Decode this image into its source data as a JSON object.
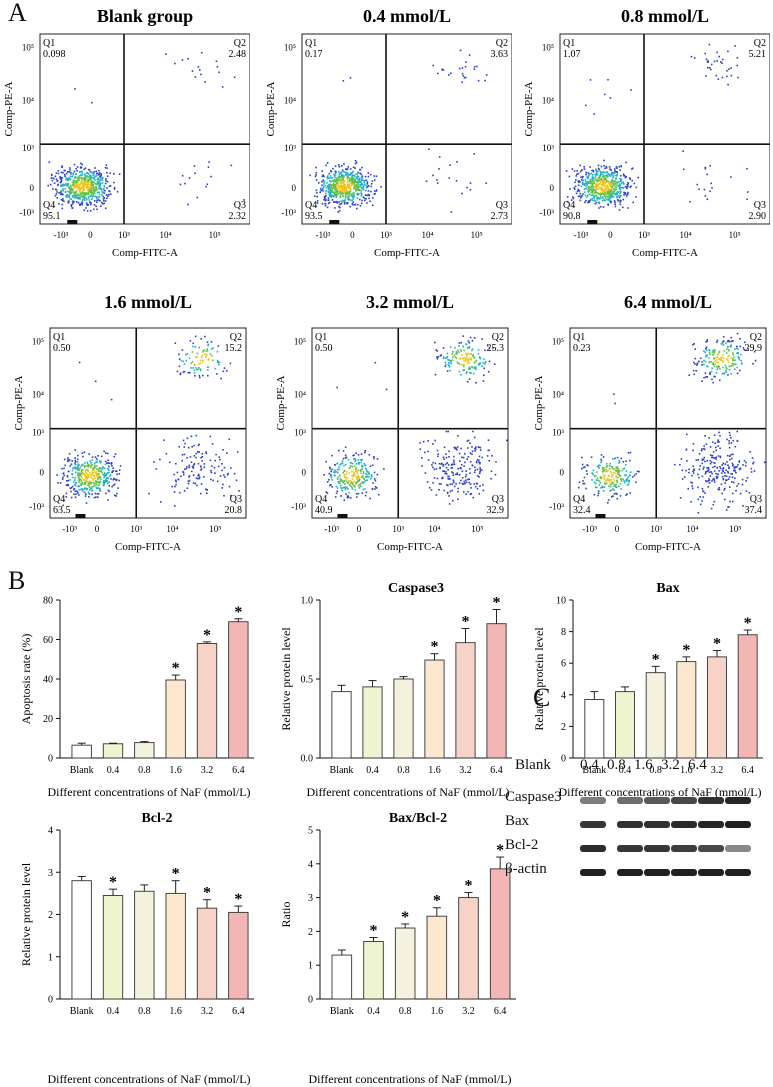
{
  "panels": {
    "A": "A",
    "B": "B",
    "C": "C"
  },
  "flow_cytometry": {
    "x_axis_label": "Comp-FITC-A",
    "y_axis_label": "Comp-PE-A",
    "x_ticks": [
      "-10³",
      "0",
      "10³",
      "10⁴",
      "10⁵"
    ],
    "y_ticks": [
      "10⁵",
      "10⁴",
      "10³",
      "0",
      "-10³"
    ],
    "plots": [
      {
        "title": "Blank group",
        "q1": [
          "Q1",
          "0.098"
        ],
        "q2": [
          "Q2",
          "2.48"
        ],
        "q3": [
          "Q3",
          "2.32"
        ],
        "q4": [
          "Q4",
          "95.1"
        ]
      },
      {
        "title": "0.4 mmol/L",
        "q1": [
          "Q1",
          "0.17"
        ],
        "q2": [
          "Q2",
          "3.63"
        ],
        "q3": [
          "Q3",
          "2.73"
        ],
        "q4": [
          "Q4",
          "93.5"
        ]
      },
      {
        "title": "0.8 mmol/L",
        "q1": [
          "Q1",
          "1.07"
        ],
        "q2": [
          "Q2",
          "5.21"
        ],
        "q3": [
          "Q3",
          "2.90"
        ],
        "q4": [
          "Q4",
          "90.8"
        ]
      },
      {
        "title": "1.6 mmol/L",
        "q1": [
          "Q1",
          "0.50"
        ],
        "q2": [
          "Q2",
          "15.2"
        ],
        "q3": [
          "Q3",
          "20.8"
        ],
        "q4": [
          "Q4",
          "63.5"
        ]
      },
      {
        "title": "3.2 mmol/L",
        "q1": [
          "Q1",
          "0.50"
        ],
        "q2": [
          "Q2",
          "25.3"
        ],
        "q3": [
          "Q3",
          "32.9"
        ],
        "q4": [
          "Q4",
          "40.9"
        ]
      },
      {
        "title": "6.4 mmol/L",
        "q1": [
          "Q1",
          "0.23"
        ],
        "q2": [
          "Q2",
          "29.9"
        ],
        "q3": [
          "Q3",
          "37.4"
        ],
        "q4": [
          "Q4",
          "32.4"
        ]
      }
    ]
  },
  "chart_data": [
    {
      "type": "bar",
      "title": "",
      "ylabel": "Apoptosis rate (%)",
      "xlabel": "Different concentrations of NaF (mmol/L)",
      "categories": [
        "Blank",
        "0.4",
        "0.8",
        "1.6",
        "3.2",
        "6.4"
      ],
      "values": [
        6.5,
        7.2,
        7.8,
        39.5,
        58.0,
        69.0
      ],
      "errors": [
        1.0,
        0.3,
        0.5,
        2.5,
        0.8,
        1.5
      ],
      "significant": [
        false,
        false,
        false,
        true,
        true,
        true
      ],
      "ylim": [
        0,
        80
      ],
      "yticks": [
        0,
        20,
        40,
        60,
        80
      ],
      "tick_decimals": 0
    },
    {
      "type": "bar",
      "title": "Caspase3",
      "ylabel": "Relative protein level",
      "xlabel": "Different concentrations of NaF (mmol/L)",
      "categories": [
        "Blank",
        "0.4",
        "0.8",
        "1.6",
        "3.2",
        "6.4"
      ],
      "values": [
        0.42,
        0.45,
        0.5,
        0.62,
        0.73,
        0.85
      ],
      "errors": [
        0.04,
        0.04,
        0.015,
        0.04,
        0.09,
        0.09
      ],
      "significant": [
        false,
        false,
        false,
        true,
        true,
        true
      ],
      "ylim": [
        0,
        1.0
      ],
      "yticks": [
        0,
        0.5,
        1.0
      ],
      "tick_decimals": 1
    },
    {
      "type": "bar",
      "title": "Bax",
      "ylabel": "Relative protein level",
      "xlabel": "Different concentrations of NaF (mmol/L)",
      "categories": [
        "Blank",
        "0.4",
        "0.8",
        "1.6",
        "3.2",
        "6.4"
      ],
      "values": [
        3.7,
        4.2,
        5.4,
        6.1,
        6.4,
        7.8
      ],
      "errors": [
        0.5,
        0.3,
        0.4,
        0.3,
        0.4,
        0.3
      ],
      "significant": [
        false,
        false,
        true,
        true,
        true,
        true
      ],
      "ylim": [
        0,
        10
      ],
      "yticks": [
        0,
        2,
        4,
        6,
        8,
        10
      ],
      "tick_decimals": 0
    },
    {
      "type": "bar",
      "title": "Bcl-2",
      "ylabel": "Relative protein level",
      "xlabel": "Different concentrations of NaF (mmol/L)",
      "categories": [
        "Blank",
        "0.4",
        "0.8",
        "1.6",
        "3.2",
        "6.4"
      ],
      "values": [
        2.8,
        2.45,
        2.55,
        2.5,
        2.15,
        2.05
      ],
      "errors": [
        0.1,
        0.15,
        0.15,
        0.3,
        0.2,
        0.15
      ],
      "significant": [
        false,
        true,
        false,
        true,
        true,
        true
      ],
      "ylim": [
        0,
        4
      ],
      "yticks": [
        0,
        1,
        2,
        3,
        4
      ],
      "tick_decimals": 0
    },
    {
      "type": "bar",
      "title": "Bax/Bcl-2",
      "ylabel": "Ratio",
      "xlabel": "Different concentrations of NaF (mmol/L)",
      "categories": [
        "Blank",
        "0.4",
        "0.8",
        "1.6",
        "3.2",
        "6.4"
      ],
      "values": [
        1.3,
        1.7,
        2.1,
        2.45,
        3.0,
        3.85
      ],
      "errors": [
        0.15,
        0.12,
        0.12,
        0.25,
        0.15,
        0.35
      ],
      "significant": [
        false,
        true,
        true,
        true,
        true,
        true
      ],
      "ylim": [
        0,
        5
      ],
      "yticks": [
        0,
        1,
        2,
        3,
        4,
        5
      ],
      "tick_decimals": 0
    }
  ],
  "bar_colors": [
    "#ffffff",
    "#eef4cf",
    "#f4f1dc",
    "#fbe8cf",
    "#f7d2c6",
    "#f4b5b5"
  ],
  "significance_mark": "*",
  "western_blot": {
    "lanes": [
      "Blank",
      "0.4",
      "0.8",
      "1.6",
      "3.2",
      "6.4"
    ],
    "bands": [
      {
        "label": "Caspase3",
        "intensity": [
          0.55,
          0.62,
          0.7,
          0.78,
          0.88,
          0.92
        ]
      },
      {
        "label": "Bax",
        "intensity": [
          0.85,
          0.88,
          0.88,
          0.9,
          0.92,
          0.95
        ]
      },
      {
        "label": "Bcl-2",
        "intensity": [
          0.9,
          0.85,
          0.85,
          0.82,
          0.78,
          0.5
        ]
      },
      {
        "label": "β-actin",
        "intensity": [
          0.95,
          0.95,
          0.95,
          0.95,
          0.95,
          0.95
        ]
      }
    ]
  }
}
